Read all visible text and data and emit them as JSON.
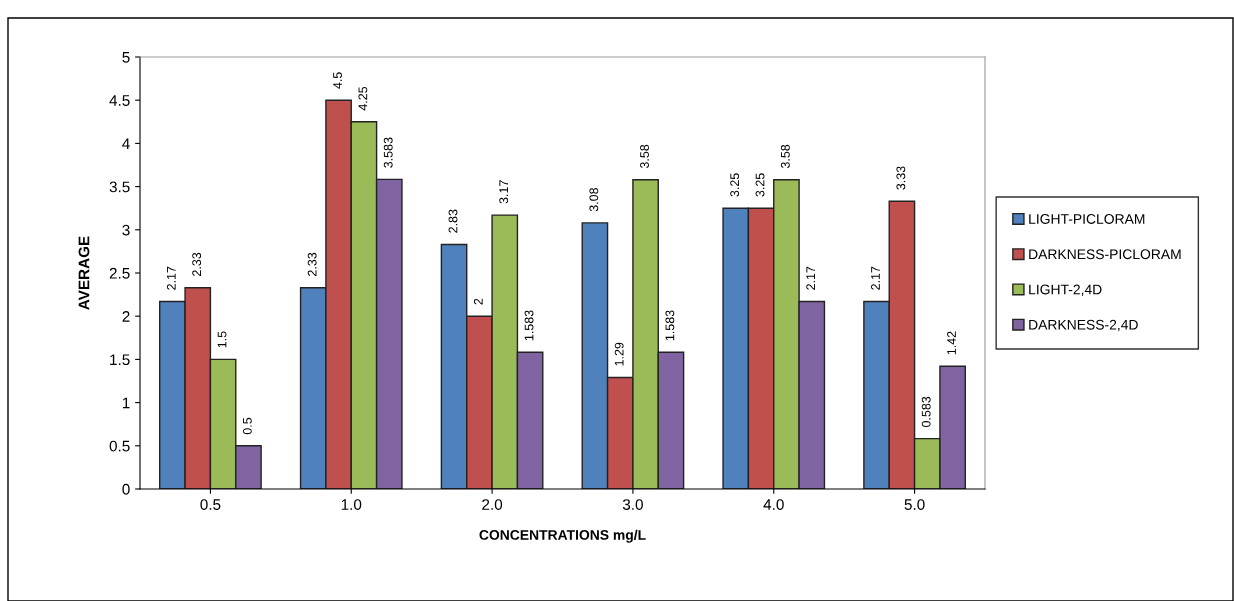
{
  "chart_data": {
    "type": "bar",
    "xlabel": "CONCENTRATIONS mg/L",
    "ylabel": "AVERAGE",
    "categories": [
      "0.5",
      "1.0",
      "2.0",
      "3.0",
      "4.0",
      "5.0"
    ],
    "series": [
      {
        "name": "LIGHT-PICLORAM",
        "color": "#4f81bd",
        "values": [
          2.17,
          2.33,
          2.83,
          3.08,
          3.25,
          2.17
        ]
      },
      {
        "name": "DARKNESS-PICLORAM",
        "color": "#c0504d",
        "values": [
          2.33,
          4.5,
          2,
          1.29,
          3.25,
          3.33
        ]
      },
      {
        "name": "LIGHT-2,4D",
        "color": "#9bbb59",
        "values": [
          1.5,
          4.25,
          3.17,
          3.58,
          3.58,
          0.583
        ]
      },
      {
        "name": "DARKNESS-2,4D",
        "color": "#8064a2",
        "values": [
          0.5,
          3.583,
          1.583,
          1.583,
          2.17,
          1.42
        ]
      }
    ],
    "ylim": [
      0,
      5
    ],
    "yticks": [
      0,
      0.5,
      1,
      1.5,
      2,
      2.5,
      3,
      3.5,
      4,
      4.5,
      5
    ],
    "data_labels": true,
    "legend": "right",
    "grid": false
  }
}
